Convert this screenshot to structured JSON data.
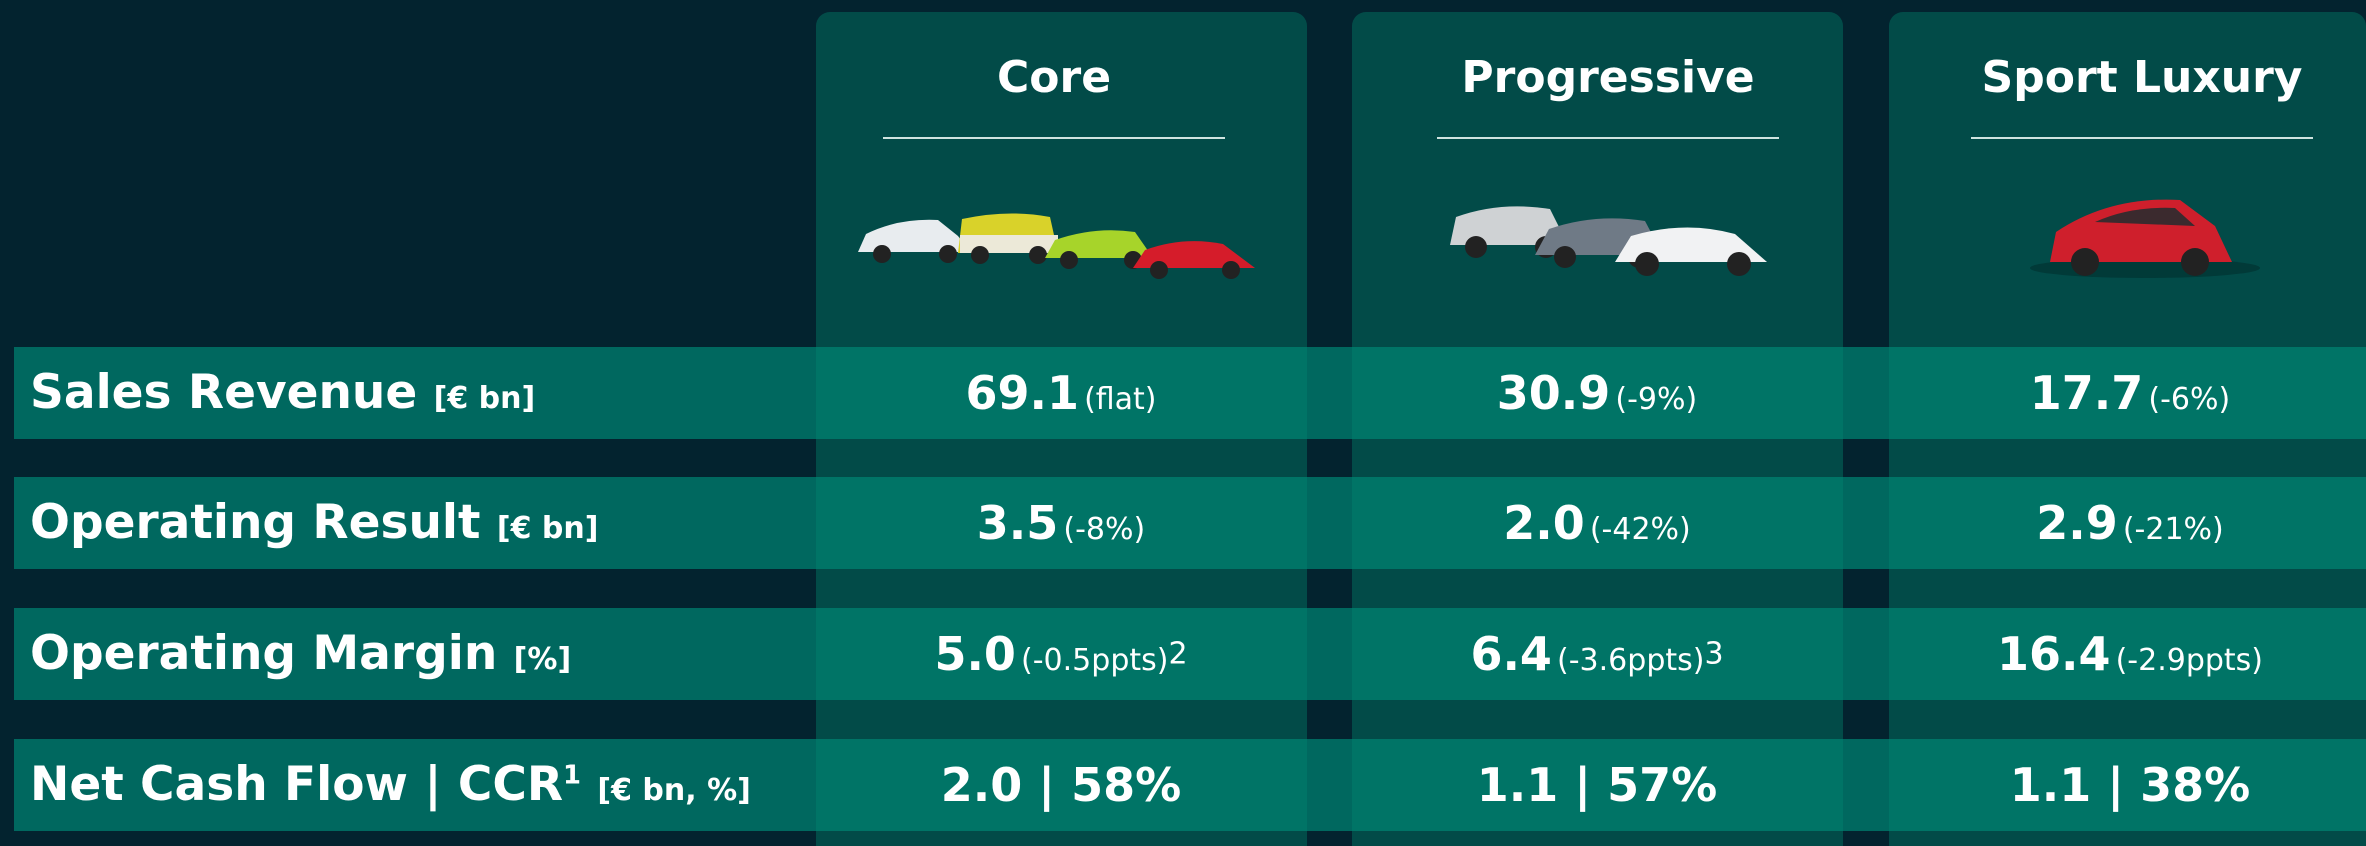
{
  "columns": [
    "Core",
    "Progressive",
    "Sport Luxury"
  ],
  "rows": [
    {
      "label": "Sales Revenue",
      "unit": "[€ bn]",
      "cells": [
        {
          "value": "69.1",
          "change": "(flat)"
        },
        {
          "value": "30.9",
          "change": "(-9%)"
        },
        {
          "value": "17.7",
          "change": "(-6%)"
        }
      ]
    },
    {
      "label": "Operating Result",
      "unit": "[€ bn]",
      "cells": [
        {
          "value": "3.5",
          "change": "(-8%)"
        },
        {
          "value": "2.0",
          "change": "(-42%)"
        },
        {
          "value": "2.9",
          "change": "(-21%)"
        }
      ]
    },
    {
      "label": "Operating Margin",
      "unit": "[%]",
      "cells": [
        {
          "value": "5.0",
          "change": "(-0.5ppts)",
          "note": "2"
        },
        {
          "value": "6.4",
          "change": "(-3.6ppts)",
          "note": "3"
        },
        {
          "value": "16.4",
          "change": "(-2.9ppts)"
        }
      ]
    },
    {
      "label": "Net Cash Flow | CCR",
      "note": "1",
      "unit": "[€ bn, %]",
      "cells": [
        {
          "value": "2.0 | 58%"
        },
        {
          "value": "1.1 | 57%"
        },
        {
          "value": "1.1 | 38%"
        }
      ]
    }
  ]
}
